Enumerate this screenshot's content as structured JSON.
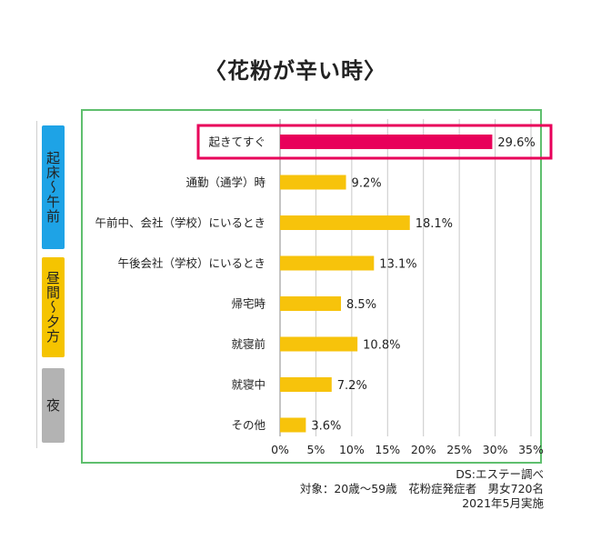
{
  "title": "〈花粉が辛い時〉",
  "bands": [
    "起床〜午前",
    "昼間〜夕方",
    "夜"
  ],
  "chart_data": {
    "type": "bar",
    "orientation": "horizontal",
    "categories": [
      "起きてすぐ",
      "通勤（通学）時",
      "午前中、会社（学校）にいるとき",
      "午後会社（学校）にいるとき",
      "帰宅時",
      "就寝前",
      "就寝中",
      "その他"
    ],
    "values": [
      29.6,
      9.2,
      18.1,
      13.1,
      8.5,
      10.8,
      7.2,
      3.6
    ],
    "value_labels": [
      "29.6%",
      "9.2%",
      "18.1%",
      "13.1%",
      "8.5%",
      "10.8%",
      "7.2%",
      "3.6%"
    ],
    "xlim": [
      0,
      35
    ],
    "xticks": [
      "0%",
      "5%",
      "10%",
      "15%",
      "20%",
      "25%",
      "30%",
      "35%"
    ],
    "grid": "vertical",
    "highlight_index": 0,
    "colors": {
      "bar": "#f7c30b",
      "highlight": "#e8005a",
      "frame": "#5fbf6e",
      "grid": "#c8c8c8"
    }
  },
  "notes": [
    "DS:エステー調べ",
    "対象：20歳～59歳　花粉症発症者　男女720名",
    "2021年5月実施"
  ]
}
